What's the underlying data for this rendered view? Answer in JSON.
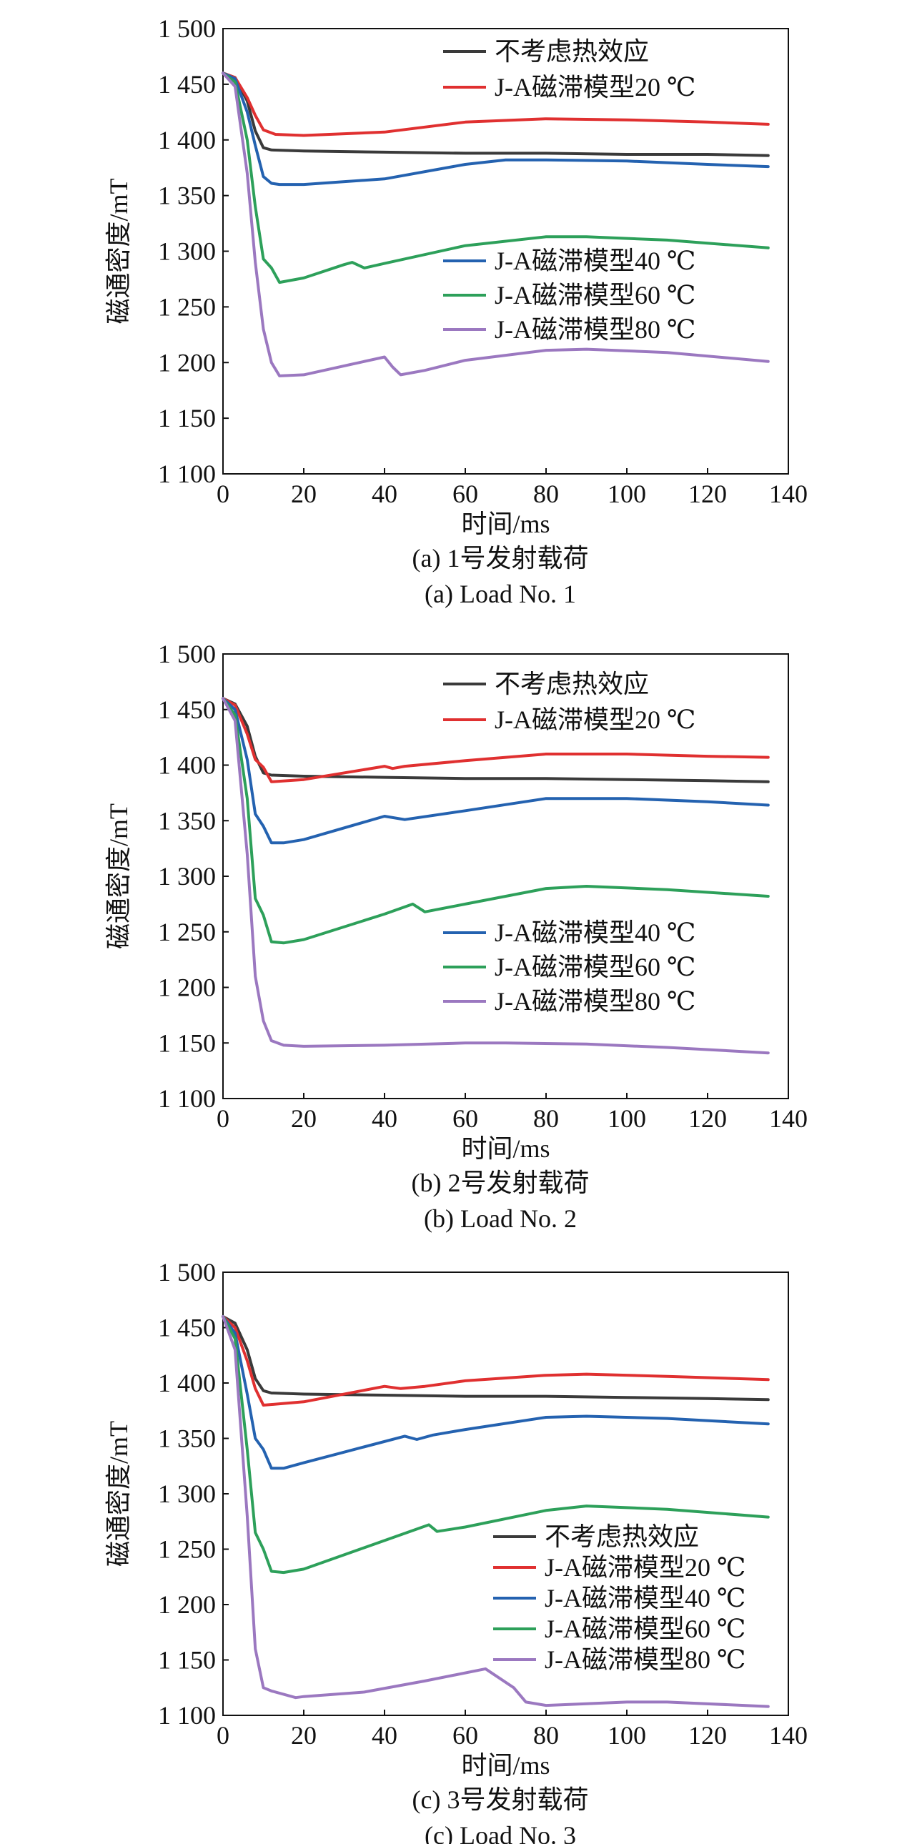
{
  "chart_data": [
    {
      "type": "line",
      "caption_cn": "(a) 1号发射载荷",
      "caption_en": "(a) Load No. 1",
      "xlabel": "时间/ms",
      "ylabel": "磁通密度/mT",
      "xlim": [
        0,
        140
      ],
      "ylim": [
        1100,
        1500
      ],
      "xticks": [
        "0",
        "20",
        "40",
        "60",
        "80",
        "100",
        "120",
        "140"
      ],
      "yticks": [
        "1 100",
        "1 150",
        "1 200",
        "1 250",
        "1 300",
        "1 350",
        "1 400",
        "1 450",
        "1 500"
      ],
      "legend_placement": "split: top-right (first two), middle-right (last three)",
      "series": [
        {
          "name": "不考虑热效应",
          "color": "#3a3a3a",
          "x": [
            0,
            3,
            6,
            8,
            10,
            12,
            20,
            40,
            60,
            80,
            100,
            120,
            135
          ],
          "y": [
            1460,
            1456,
            1435,
            1408,
            1393,
            1391,
            1390,
            1389,
            1388,
            1388,
            1387,
            1387,
            1386
          ]
        },
        {
          "name": "J-A磁滞模型20 ℃",
          "color": "#e03030",
          "x": [
            0,
            3,
            6,
            8,
            10,
            13,
            20,
            40,
            60,
            80,
            100,
            120,
            135
          ],
          "y": [
            1460,
            1456,
            1438,
            1422,
            1409,
            1405,
            1404,
            1407,
            1416,
            1419,
            1418,
            1416,
            1414
          ]
        },
        {
          "name": "J-A磁滞模型40 ℃",
          "color": "#2462b0",
          "x": [
            0,
            3,
            6,
            8,
            10,
            12,
            14,
            20,
            40,
            60,
            70,
            80,
            100,
            120,
            135
          ],
          "y": [
            1460,
            1455,
            1425,
            1395,
            1367,
            1361,
            1360,
            1360,
            1365,
            1378,
            1382,
            1382,
            1381,
            1378,
            1376
          ]
        },
        {
          "name": "J-A磁滞模型60 ℃",
          "color": "#2da05a",
          "x": [
            0,
            3,
            6,
            8,
            10,
            12,
            14,
            20,
            30,
            32,
            35,
            40,
            60,
            80,
            90,
            110,
            135
          ],
          "y": [
            1460,
            1452,
            1400,
            1340,
            1293,
            1285,
            1272,
            1276,
            1288,
            1290,
            1285,
            1289,
            1305,
            1313,
            1313,
            1310,
            1303
          ]
        },
        {
          "name": "J-A磁滞模型80 ℃",
          "color": "#9b78c0",
          "x": [
            0,
            3,
            6,
            8,
            10,
            12,
            14,
            20,
            30,
            40,
            42,
            44,
            50,
            60,
            80,
            90,
            110,
            135
          ],
          "y": [
            1460,
            1448,
            1370,
            1290,
            1230,
            1200,
            1188,
            1189,
            1197,
            1205,
            1196,
            1189,
            1193,
            1202,
            1211,
            1212,
            1209,
            1201
          ]
        }
      ]
    },
    {
      "type": "line",
      "caption_cn": "(b) 2号发射载荷",
      "caption_en": "(b) Load No. 2",
      "xlabel": "时间/ms",
      "ylabel": "磁通密度/mT",
      "xlim": [
        0,
        140
      ],
      "ylim": [
        1100,
        1500
      ],
      "xticks": [
        "0",
        "20",
        "40",
        "60",
        "80",
        "100",
        "120",
        "140"
      ],
      "yticks": [
        "1 100",
        "1 150",
        "1 200",
        "1 250",
        "1 300",
        "1 350",
        "1 400",
        "1 450",
        "1 500"
      ],
      "legend_placement": "split: top-right (first two), middle-right (last three)",
      "series": [
        {
          "name": "不考虑热效应",
          "color": "#3a3a3a",
          "x": [
            0,
            3,
            6,
            8,
            10,
            12,
            20,
            40,
            60,
            80,
            100,
            120,
            135
          ],
          "y": [
            1460,
            1455,
            1435,
            1408,
            1393,
            1391,
            1390,
            1389,
            1388,
            1388,
            1387,
            1386,
            1385
          ]
        },
        {
          "name": "J-A磁滞模型20 ℃",
          "color": "#e03030",
          "x": [
            0,
            3,
            6,
            8,
            10,
            12,
            20,
            40,
            42,
            45,
            60,
            80,
            100,
            120,
            135
          ],
          "y": [
            1460,
            1454,
            1428,
            1405,
            1398,
            1385,
            1387,
            1399,
            1397,
            1399,
            1404,
            1410,
            1410,
            1408,
            1407
          ]
        },
        {
          "name": "J-A磁滞模型40 ℃",
          "color": "#2462b0",
          "x": [
            0,
            3,
            6,
            8,
            10,
            12,
            15,
            20,
            40,
            45,
            60,
            80,
            100,
            120,
            135
          ],
          "y": [
            1460,
            1450,
            1405,
            1356,
            1345,
            1330,
            1330,
            1333,
            1354,
            1351,
            1359,
            1370,
            1370,
            1367,
            1364
          ]
        },
        {
          "name": "J-A磁滞模型60 ℃",
          "color": "#2da05a",
          "x": [
            0,
            3,
            6,
            8,
            10,
            12,
            15,
            20,
            40,
            47,
            50,
            60,
            80,
            90,
            110,
            135
          ],
          "y": [
            1460,
            1445,
            1370,
            1280,
            1265,
            1241,
            1240,
            1243,
            1266,
            1275,
            1268,
            1275,
            1289,
            1291,
            1288,
            1282
          ]
        },
        {
          "name": "J-A磁滞模型80 ℃",
          "color": "#9b78c0",
          "x": [
            0,
            3,
            6,
            8,
            10,
            12,
            15,
            20,
            40,
            60,
            70,
            90,
            110,
            135
          ],
          "y": [
            1460,
            1440,
            1320,
            1210,
            1170,
            1152,
            1148,
            1147,
            1148,
            1150,
            1150,
            1149,
            1146,
            1141
          ]
        }
      ]
    },
    {
      "type": "line",
      "caption_cn": "(c) 3号发射载荷",
      "caption_en": "(c) Load No. 3",
      "xlabel": "时间/ms",
      "ylabel": "磁通密度/mT",
      "xlim": [
        0,
        140
      ],
      "ylim": [
        1100,
        1500
      ],
      "xticks": [
        "0",
        "20",
        "40",
        "60",
        "80",
        "100",
        "120",
        "140"
      ],
      "yticks": [
        "1 100",
        "1 150",
        "1 200",
        "1 250",
        "1 300",
        "1 350",
        "1 400",
        "1 450",
        "1 500"
      ],
      "legend_placement": "bottom-right",
      "series": [
        {
          "name": "不考虑热效应",
          "color": "#3a3a3a",
          "x": [
            0,
            3,
            6,
            8,
            10,
            12,
            20,
            40,
            60,
            80,
            100,
            120,
            135
          ],
          "y": [
            1460,
            1454,
            1430,
            1404,
            1393,
            1391,
            1390,
            1389,
            1388,
            1388,
            1387,
            1386,
            1385
          ]
        },
        {
          "name": "J-A磁滞模型20 ℃",
          "color": "#e03030",
          "x": [
            0,
            3,
            6,
            8,
            10,
            20,
            40,
            44,
            50,
            60,
            80,
            90,
            110,
            135
          ],
          "y": [
            1460,
            1450,
            1420,
            1395,
            1380,
            1383,
            1397,
            1395,
            1397,
            1402,
            1407,
            1408,
            1406,
            1403
          ]
        },
        {
          "name": "J-A磁滞模型40 ℃",
          "color": "#2462b0",
          "x": [
            0,
            3,
            6,
            8,
            10,
            12,
            15,
            20,
            45,
            48,
            52,
            60,
            80,
            90,
            110,
            135
          ],
          "y": [
            1460,
            1445,
            1390,
            1350,
            1340,
            1323,
            1323,
            1328,
            1352,
            1349,
            1353,
            1358,
            1369,
            1370,
            1368,
            1363
          ]
        },
        {
          "name": "J-A磁滞模型60 ℃",
          "color": "#2da05a",
          "x": [
            0,
            3,
            6,
            8,
            10,
            12,
            15,
            20,
            51,
            53,
            60,
            80,
            90,
            110,
            135
          ],
          "y": [
            1460,
            1440,
            1340,
            1265,
            1250,
            1230,
            1229,
            1232,
            1272,
            1266,
            1270,
            1285,
            1289,
            1286,
            1279
          ]
        },
        {
          "name": "J-A磁滞模型80 ℃",
          "color": "#9b78c0",
          "x": [
            0,
            3,
            6,
            8,
            10,
            12,
            18,
            20,
            35,
            50,
            65,
            72,
            75,
            80,
            100,
            110,
            135
          ],
          "y": [
            1460,
            1430,
            1280,
            1160,
            1125,
            1122,
            1116,
            1117,
            1121,
            1131,
            1142,
            1125,
            1112,
            1109,
            1112,
            1112,
            1108
          ]
        }
      ]
    }
  ]
}
